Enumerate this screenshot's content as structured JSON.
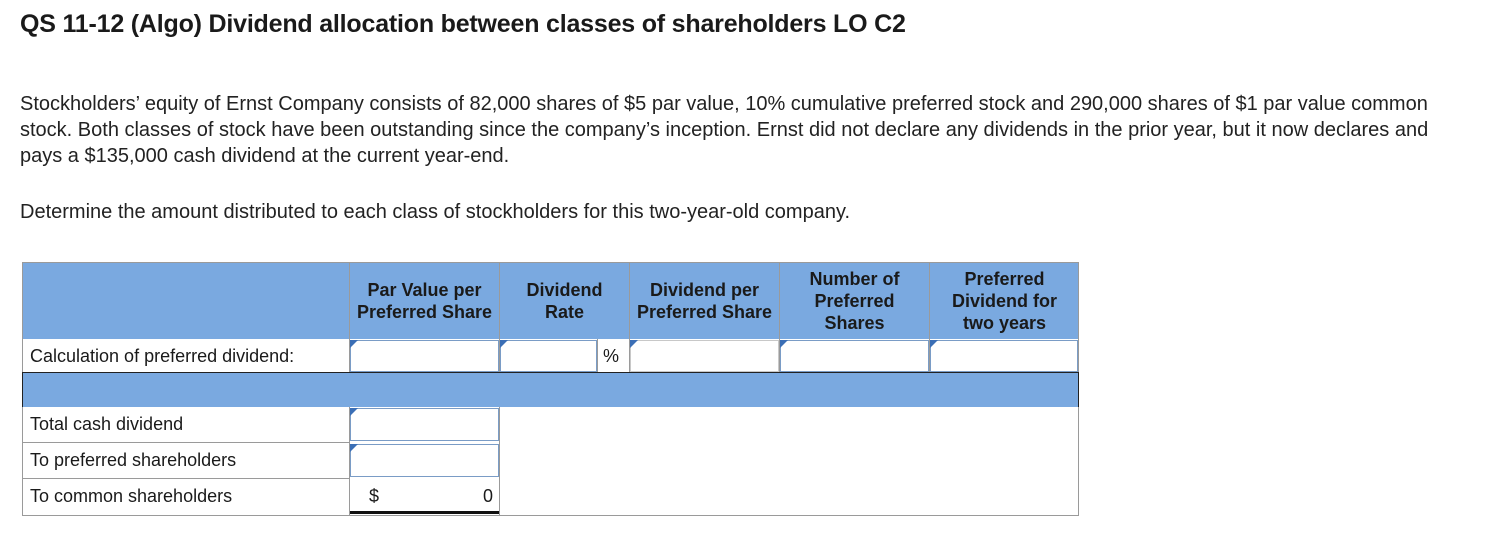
{
  "title": "QS 11-12 (Algo) Dividend allocation between classes of shareholders LO C2",
  "problem_text": "Stockholders’ equity of Ernst Company consists of 82,000 shares of $5 par value, 10% cumulative preferred stock and 290,000 shares of $1 par value common stock. Both classes of stock have been outstanding since the company’s inception. Ernst did not declare any dividends in the prior year, but it now declares and pays a $135,000 cash dividend at the current year-end.",
  "instruction": "Determine the amount distributed to each class of stockholders for this two-year-old company.",
  "table": {
    "headers": {
      "par_value": "Par Value per Preferred Share",
      "dividend_rate": "Dividend Rate",
      "dividend_per_share": "Dividend per Preferred Share",
      "num_shares": "Number of Preferred Shares",
      "preferred_dividend": "Preferred Dividend for two years"
    },
    "calc_row_label": "Calculation of preferred dividend:",
    "percent_symbol": "%",
    "rows": {
      "total": "Total cash dividend",
      "preferred": "To preferred shareholders",
      "common": "To common shareholders"
    },
    "common_currency": "$",
    "common_value": "0"
  },
  "colors": {
    "header_blue": "#7aa9e0",
    "input_marker": "#3b6fb6"
  }
}
